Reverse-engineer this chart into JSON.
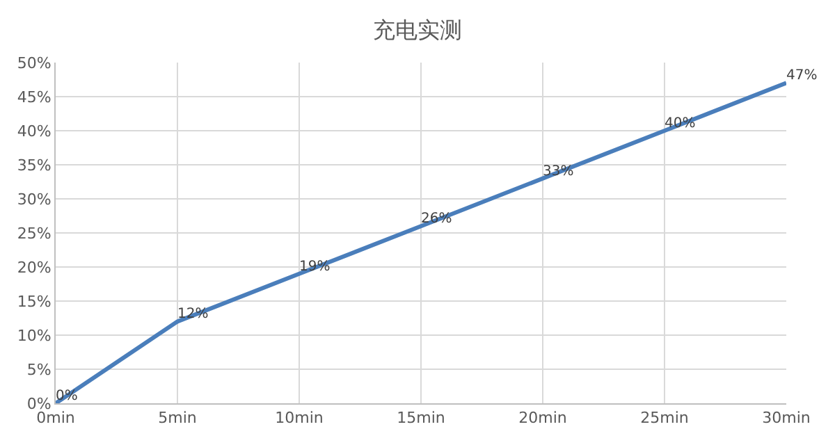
{
  "chart_data": {
    "type": "line",
    "title": "充电实测",
    "categories": [
      "0min",
      "5min",
      "10min",
      "15min",
      "20min",
      "25min",
      "30min"
    ],
    "series": [
      {
        "color": "#4a7ebb",
        "values": [
          0,
          12,
          19,
          26,
          33,
          40,
          47
        ],
        "value_labels": [
          "0%",
          "12%",
          "19%",
          "26%",
          "33%",
          "40%",
          "47%"
        ]
      }
    ],
    "ylim": [
      0,
      50
    ],
    "yticks": [
      {
        "value": 0,
        "label": "0%"
      },
      {
        "value": 5,
        "label": "5%"
      },
      {
        "value": 10,
        "label": "10%"
      },
      {
        "value": 15,
        "label": "15%"
      },
      {
        "value": 20,
        "label": "20%"
      },
      {
        "value": 25,
        "label": "25%"
      },
      {
        "value": 30,
        "label": "30%"
      },
      {
        "value": 35,
        "label": "35%"
      },
      {
        "value": 40,
        "label": "40%"
      },
      {
        "value": 45,
        "label": "45%"
      },
      {
        "value": 50,
        "label": "50%"
      }
    ],
    "grid": true,
    "marker": "none",
    "line_style": "solid"
  }
}
